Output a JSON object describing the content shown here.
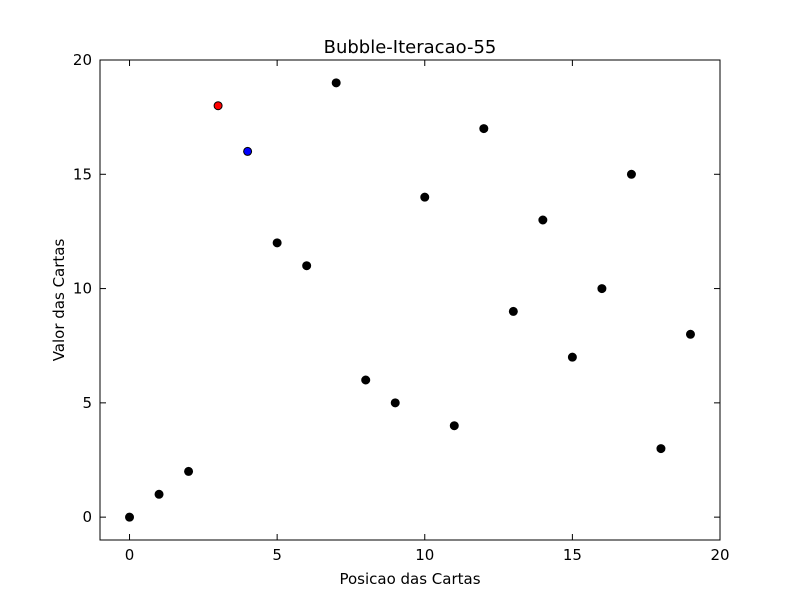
{
  "chart_data": {
    "type": "scatter",
    "title": "Bubble-Iteracao-55",
    "xlabel": "Posicao das Cartas",
    "ylabel": "Valor das Cartas",
    "xlim": [
      -1,
      20
    ],
    "ylim": [
      -1,
      20
    ],
    "xticks": [
      0,
      5,
      10,
      15,
      20
    ],
    "yticks": [
      0,
      5,
      10,
      15,
      20
    ],
    "xtick_labels": [
      "0",
      "5",
      "10",
      "15",
      "20"
    ],
    "ytick_labels": [
      "0",
      "5",
      "10",
      "15",
      "20"
    ],
    "grid": false,
    "series": [
      {
        "color": "#000000",
        "points": [
          {
            "x": 0,
            "y": 0
          },
          {
            "x": 1,
            "y": 1
          },
          {
            "x": 2,
            "y": 2
          },
          {
            "x": 5,
            "y": 12
          },
          {
            "x": 6,
            "y": 11
          },
          {
            "x": 7,
            "y": 19
          },
          {
            "x": 8,
            "y": 6
          },
          {
            "x": 9,
            "y": 5
          },
          {
            "x": 10,
            "y": 14
          },
          {
            "x": 11,
            "y": 4
          },
          {
            "x": 12,
            "y": 17
          },
          {
            "x": 13,
            "y": 9
          },
          {
            "x": 14,
            "y": 13
          },
          {
            "x": 15,
            "y": 7
          },
          {
            "x": 16,
            "y": 10
          },
          {
            "x": 17,
            "y": 15
          },
          {
            "x": 18,
            "y": 3
          },
          {
            "x": 19,
            "y": 8
          }
        ]
      },
      {
        "color": "#ff0000",
        "points": [
          {
            "x": 3,
            "y": 18
          }
        ]
      },
      {
        "color": "#0000ff",
        "points": [
          {
            "x": 4,
            "y": 16
          }
        ]
      }
    ]
  }
}
